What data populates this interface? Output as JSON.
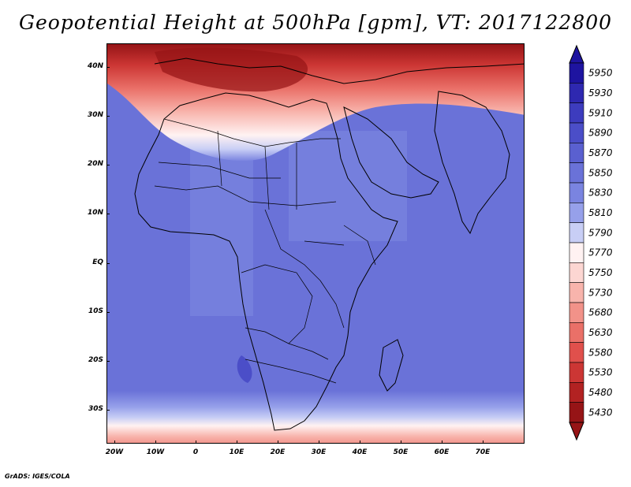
{
  "title": "Geopotential Height at 500hPa [gpm], VT: 2017122800",
  "credit": "GrADS: IGES/COLA",
  "axes": {
    "lat_labels": [
      "40N",
      "30N",
      "20N",
      "10N",
      "EQ",
      "10S",
      "20S",
      "30S"
    ],
    "lon_labels": [
      "20W",
      "10W",
      "0",
      "10E",
      "20E",
      "30E",
      "40E",
      "50E",
      "60E",
      "70E"
    ]
  },
  "colorbar": {
    "levels": [
      "5950",
      "5930",
      "5910",
      "5890",
      "5870",
      "5850",
      "5830",
      "5810",
      "5790",
      "5770",
      "5750",
      "5730",
      "5680",
      "5630",
      "5580",
      "5530",
      "5480",
      "5430"
    ],
    "colors": {
      "5950": "#1e14a0",
      "5930": "#2e28b0",
      "5910": "#3d3cbe",
      "5890": "#4b4ec8",
      "5870": "#5a60d0",
      "5850": "#6a72d8",
      "5830": "#7a84e0",
      "5810": "#96a0ea",
      "5790": "#c8cef5",
      "5770": "#fff2f2",
      "5750": "#fcd6d2",
      "5730": "#f8b4ac",
      "5680": "#f29289",
      "5630": "#ea7068",
      "5580": "#e0504c",
      "5530": "#cc3634",
      "5480": "#b22222",
      "5430": "#961416"
    }
  }
}
